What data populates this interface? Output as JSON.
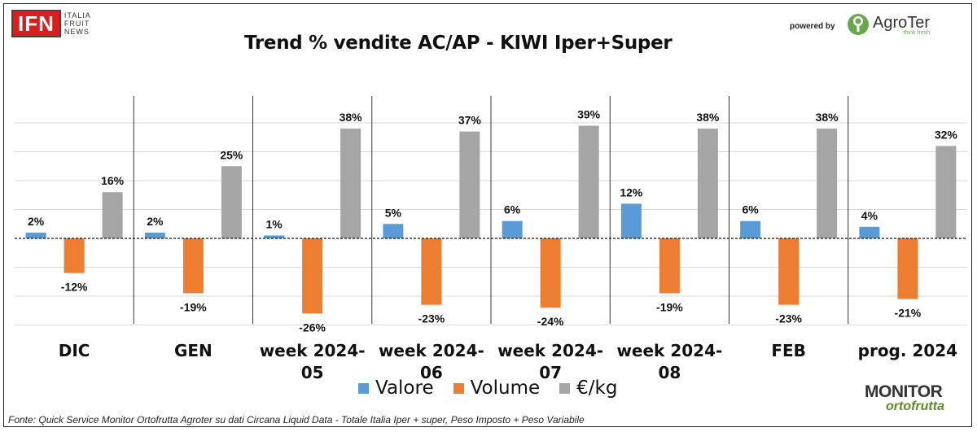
{
  "header": {
    "logo_main": "IFN",
    "logo_sub_1": "ITALIA",
    "logo_sub_2": "FRUIT",
    "logo_sub_3": "NEWS",
    "title": "Trend % vendite AC/AP - KIWI Iper+Super",
    "powered_by": "powered by",
    "partner_logo": "AgroTer",
    "partner_tagline": "think fresh"
  },
  "chart_data": {
    "type": "bar",
    "categories": [
      [
        "DIC"
      ],
      [
        "GEN"
      ],
      [
        "week 2024-",
        "05"
      ],
      [
        "week 2024-",
        "06"
      ],
      [
        "week 2024-",
        "07"
      ],
      [
        "week 2024-",
        "08"
      ],
      [
        "FEB"
      ],
      [
        "prog. 2024"
      ]
    ],
    "series": [
      {
        "name": "Valore",
        "color": "#5b9bd5",
        "values": [
          2,
          2,
          1,
          5,
          6,
          12,
          6,
          4
        ],
        "labels": [
          "2%",
          "2%",
          "1%",
          "5%",
          "6%",
          "12%",
          "6%",
          "4%"
        ]
      },
      {
        "name": "Volume",
        "color": "#ed7d31",
        "values": [
          -12,
          -19,
          -26,
          -23,
          -24,
          -19,
          -23,
          -21
        ],
        "labels": [
          "-12%",
          "-19%",
          "-26%",
          "-23%",
          "-24%",
          "-19%",
          "-23%",
          "-21%"
        ]
      },
      {
        "name": "€/kg",
        "color": "#a5a5a5",
        "values": [
          16,
          25,
          38,
          37,
          39,
          38,
          38,
          32
        ],
        "labels": [
          "16%",
          "25%",
          "38%",
          "37%",
          "39%",
          "38%",
          "38%",
          "32%"
        ]
      }
    ],
    "ylim": [
      -30,
      50
    ],
    "grid": true,
    "legend_position": "bottom"
  },
  "footer": {
    "source": "Fonte: Quick Service Monitor Ortofrutta Agroter su dati Circana Liquid Data - Totale Italia Iper + super, Peso Imposto + Peso Variabile",
    "monitor_top": "MONITOR",
    "monitor_bottom": "ortofrutta"
  }
}
